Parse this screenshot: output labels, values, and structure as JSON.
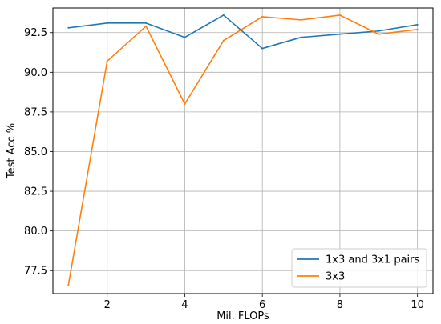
{
  "chart_data": {
    "type": "line",
    "title": "",
    "xlabel": "Mil. FLOPs",
    "ylabel": "Test Acc %",
    "xlim": [
      0.6,
      10.4
    ],
    "ylim": [
      76.05,
      94.05
    ],
    "xticks": [
      2,
      4,
      6,
      8,
      10
    ],
    "yticks": [
      77.5,
      80.0,
      82.5,
      85.0,
      87.5,
      90.0,
      92.5
    ],
    "xtick_labels": [
      "2",
      "4",
      "6",
      "8",
      "10"
    ],
    "ytick_labels": [
      "77.5",
      "80.0",
      "82.5",
      "85.0",
      "87.5",
      "90.0",
      "92.5"
    ],
    "grid": true,
    "legend_position": "lower-right",
    "x": [
      1,
      2,
      3,
      4,
      5,
      6,
      7,
      8,
      9,
      10
    ],
    "series": [
      {
        "name": "1x3 and 3x1 pairs",
        "color": "#1f77b4",
        "values": [
          92.8,
          93.1,
          93.1,
          92.2,
          93.6,
          91.5,
          92.2,
          92.4,
          92.6,
          93.0
        ]
      },
      {
        "name": "3x3",
        "color": "#ff7f0e",
        "values": [
          76.6,
          90.7,
          92.9,
          88.0,
          92.0,
          93.5,
          93.3,
          93.6,
          92.4,
          92.7
        ]
      }
    ]
  }
}
